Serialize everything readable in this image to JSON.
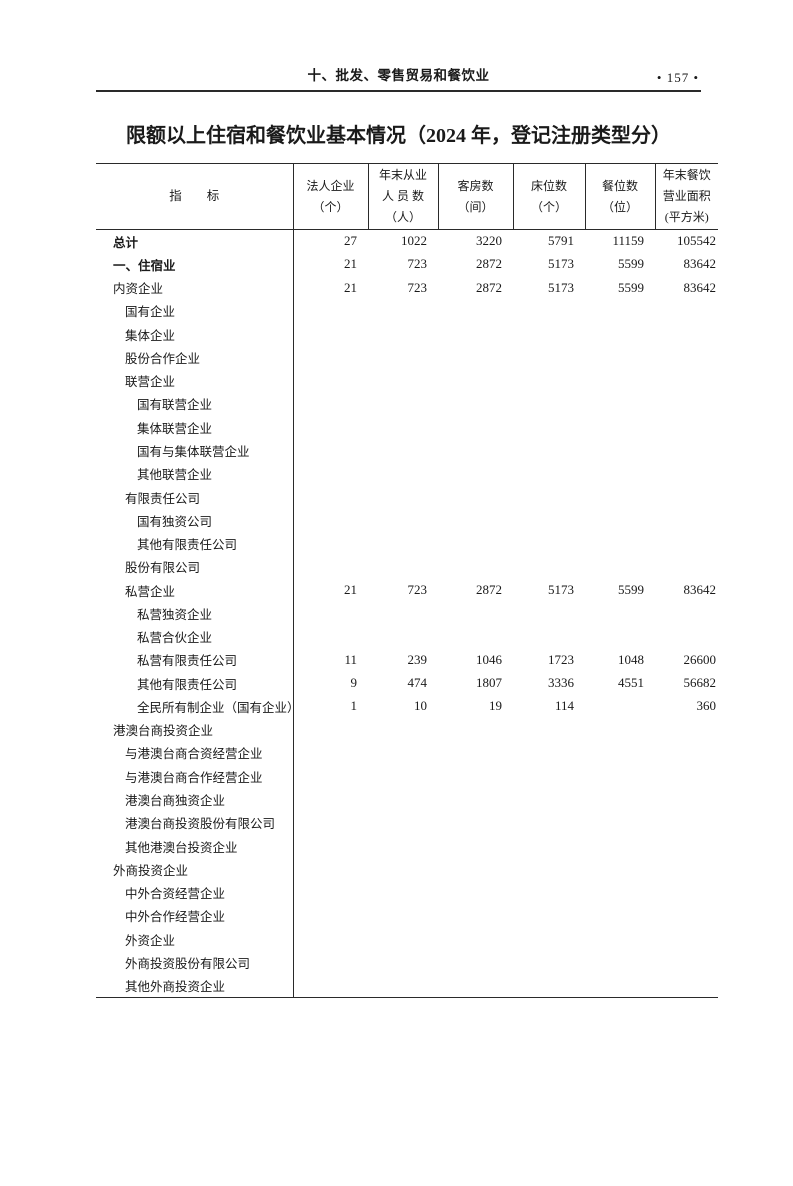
{
  "header": {
    "section_title": "十、批发、零售贸易和餐饮业",
    "page_number": "• 157 •"
  },
  "title": "限额以上住宿和餐饮业基本情况（2024 年，登记注册类型分）",
  "table": {
    "indicator_header": "指　　标",
    "columns": [
      {
        "lines": [
          "法人企业",
          "（个）"
        ]
      },
      {
        "lines": [
          "年末从业",
          "人 员 数",
          "（人）"
        ]
      },
      {
        "lines": [
          "客房数",
          "（间）"
        ]
      },
      {
        "lines": [
          "床位数",
          "（个）"
        ]
      },
      {
        "lines": [
          "餐位数",
          "（位）"
        ]
      },
      {
        "lines": [
          "年末餐饮",
          "营业面积",
          "(平方米)"
        ]
      }
    ],
    "rows": [
      {
        "label": "总计",
        "indent": 0,
        "bold": true,
        "values": [
          "27",
          "1022",
          "3220",
          "5791",
          "11159",
          "105542"
        ]
      },
      {
        "label": "一、住宿业",
        "indent": 0,
        "bold": true,
        "values": [
          "21",
          "723",
          "2872",
          "5173",
          "5599",
          "83642"
        ]
      },
      {
        "label": "内资企业",
        "indent": 0,
        "bold": false,
        "values": [
          "21",
          "723",
          "2872",
          "5173",
          "5599",
          "83642"
        ]
      },
      {
        "label": "国有企业",
        "indent": 1,
        "bold": false,
        "values": [
          "",
          "",
          "",
          "",
          "",
          ""
        ]
      },
      {
        "label": "集体企业",
        "indent": 1,
        "bold": false,
        "values": [
          "",
          "",
          "",
          "",
          "",
          ""
        ]
      },
      {
        "label": "股份合作企业",
        "indent": 1,
        "bold": false,
        "values": [
          "",
          "",
          "",
          "",
          "",
          ""
        ]
      },
      {
        "label": "联营企业",
        "indent": 1,
        "bold": false,
        "values": [
          "",
          "",
          "",
          "",
          "",
          ""
        ]
      },
      {
        "label": "国有联营企业",
        "indent": 2,
        "bold": false,
        "values": [
          "",
          "",
          "",
          "",
          "",
          ""
        ]
      },
      {
        "label": "集体联营企业",
        "indent": 2,
        "bold": false,
        "values": [
          "",
          "",
          "",
          "",
          "",
          ""
        ]
      },
      {
        "label": "国有与集体联营企业",
        "indent": 2,
        "bold": false,
        "values": [
          "",
          "",
          "",
          "",
          "",
          ""
        ]
      },
      {
        "label": "其他联营企业",
        "indent": 2,
        "bold": false,
        "values": [
          "",
          "",
          "",
          "",
          "",
          ""
        ]
      },
      {
        "label": "有限责任公司",
        "indent": 1,
        "bold": false,
        "values": [
          "",
          "",
          "",
          "",
          "",
          ""
        ]
      },
      {
        "label": "国有独资公司",
        "indent": 2,
        "bold": false,
        "values": [
          "",
          "",
          "",
          "",
          "",
          ""
        ]
      },
      {
        "label": "其他有限责任公司",
        "indent": 2,
        "bold": false,
        "values": [
          "",
          "",
          "",
          "",
          "",
          ""
        ]
      },
      {
        "label": "股份有限公司",
        "indent": 1,
        "bold": false,
        "values": [
          "",
          "",
          "",
          "",
          "",
          ""
        ]
      },
      {
        "label": "私营企业",
        "indent": 1,
        "bold": false,
        "values": [
          "21",
          "723",
          "2872",
          "5173",
          "5599",
          "83642"
        ]
      },
      {
        "label": "私营独资企业",
        "indent": 2,
        "bold": false,
        "values": [
          "",
          "",
          "",
          "",
          "",
          ""
        ]
      },
      {
        "label": "私营合伙企业",
        "indent": 2,
        "bold": false,
        "values": [
          "",
          "",
          "",
          "",
          "",
          ""
        ]
      },
      {
        "label": "私营有限责任公司",
        "indent": 2,
        "bold": false,
        "values": [
          "11",
          "239",
          "1046",
          "1723",
          "1048",
          "26600"
        ]
      },
      {
        "label": "其他有限责任公司",
        "indent": 2,
        "bold": false,
        "values": [
          "9",
          "474",
          "1807",
          "3336",
          "4551",
          "56682"
        ]
      },
      {
        "label": "全民所有制企业（国有企业）",
        "indent": 2,
        "bold": false,
        "values": [
          "1",
          "10",
          "19",
          "114",
          "",
          "360"
        ]
      },
      {
        "label": "港澳台商投资企业",
        "indent": 0,
        "bold": false,
        "values": [
          "",
          "",
          "",
          "",
          "",
          ""
        ]
      },
      {
        "label": "与港澳台商合资经营企业",
        "indent": 1,
        "bold": false,
        "values": [
          "",
          "",
          "",
          "",
          "",
          ""
        ]
      },
      {
        "label": "与港澳台商合作经营企业",
        "indent": 1,
        "bold": false,
        "values": [
          "",
          "",
          "",
          "",
          "",
          ""
        ]
      },
      {
        "label": "港澳台商独资企业",
        "indent": 1,
        "bold": false,
        "values": [
          "",
          "",
          "",
          "",
          "",
          ""
        ]
      },
      {
        "label": "港澳台商投资股份有限公司",
        "indent": 1,
        "bold": false,
        "values": [
          "",
          "",
          "",
          "",
          "",
          ""
        ]
      },
      {
        "label": "其他港澳台投资企业",
        "indent": 1,
        "bold": false,
        "values": [
          "",
          "",
          "",
          "",
          "",
          ""
        ]
      },
      {
        "label": "外商投资企业",
        "indent": 0,
        "bold": false,
        "values": [
          "",
          "",
          "",
          "",
          "",
          ""
        ]
      },
      {
        "label": "中外合资经营企业",
        "indent": 1,
        "bold": false,
        "values": [
          "",
          "",
          "",
          "",
          "",
          ""
        ]
      },
      {
        "label": "中外合作经营企业",
        "indent": 1,
        "bold": false,
        "values": [
          "",
          "",
          "",
          "",
          "",
          ""
        ]
      },
      {
        "label": "外资企业",
        "indent": 1,
        "bold": false,
        "values": [
          "",
          "",
          "",
          "",
          "",
          ""
        ]
      },
      {
        "label": "外商投资股份有限公司",
        "indent": 1,
        "bold": false,
        "values": [
          "",
          "",
          "",
          "",
          "",
          ""
        ]
      },
      {
        "label": "其他外商投资企业",
        "indent": 1,
        "bold": false,
        "values": [
          "",
          "",
          "",
          "",
          "",
          ""
        ]
      }
    ]
  }
}
